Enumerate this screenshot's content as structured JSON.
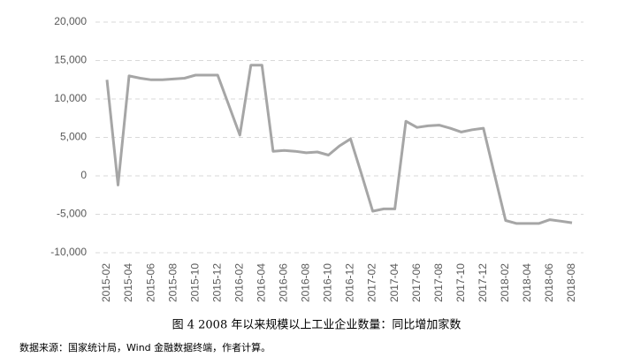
{
  "chart_data": {
    "type": "line",
    "title": "图 4 2008 年以来规模以上工业企业数量：同比增加家数",
    "source": "数据来源：国家统计局，Wind 金融数据终端，作者计算。",
    "categories": [
      "2015-02",
      null,
      "2015-04",
      null,
      "2015-06",
      null,
      "2015-08",
      null,
      "2015-10",
      null,
      "2015-12",
      null,
      "2016-02",
      null,
      "2016-04",
      null,
      "2016-06",
      null,
      "2016-08",
      null,
      "2016-10",
      null,
      "2016-12",
      null,
      "2017-02",
      null,
      "2017-04",
      null,
      "2017-06",
      null,
      "2017-08",
      null,
      "2017-10",
      null,
      "2017-12",
      null,
      "2018-02",
      null,
      "2018-04",
      null,
      "2018-06",
      null,
      "2018-08"
    ],
    "values": [
      12500,
      -1200,
      13000,
      12700,
      12500,
      12500,
      12600,
      12700,
      13100,
      13100,
      13100,
      9200,
      5300,
      14400,
      14400,
      3200,
      3300,
      3200,
      3000,
      3100,
      2700,
      3900,
      4800,
      200,
      -4600,
      -4300,
      -4300,
      7100,
      6300,
      6500,
      6600,
      6200,
      5700,
      6000,
      6200,
      200,
      -5800,
      -6200,
      -6200,
      -6200,
      -5700,
      -5900,
      -6100
    ],
    "color": "#a6a6a6",
    "ylim": [
      -10000,
      20000
    ],
    "yticks": [
      {
        "value": -10000,
        "label": "-10,000"
      },
      {
        "value": -5000,
        "label": "-5,000"
      },
      0,
      {
        "value": 5000,
        "label": "5,000"
      },
      {
        "value": 10000,
        "label": "10,000"
      },
      {
        "value": 15000,
        "label": "15,000"
      },
      {
        "value": 20000,
        "label": "20,000"
      }
    ],
    "grid": true
  }
}
